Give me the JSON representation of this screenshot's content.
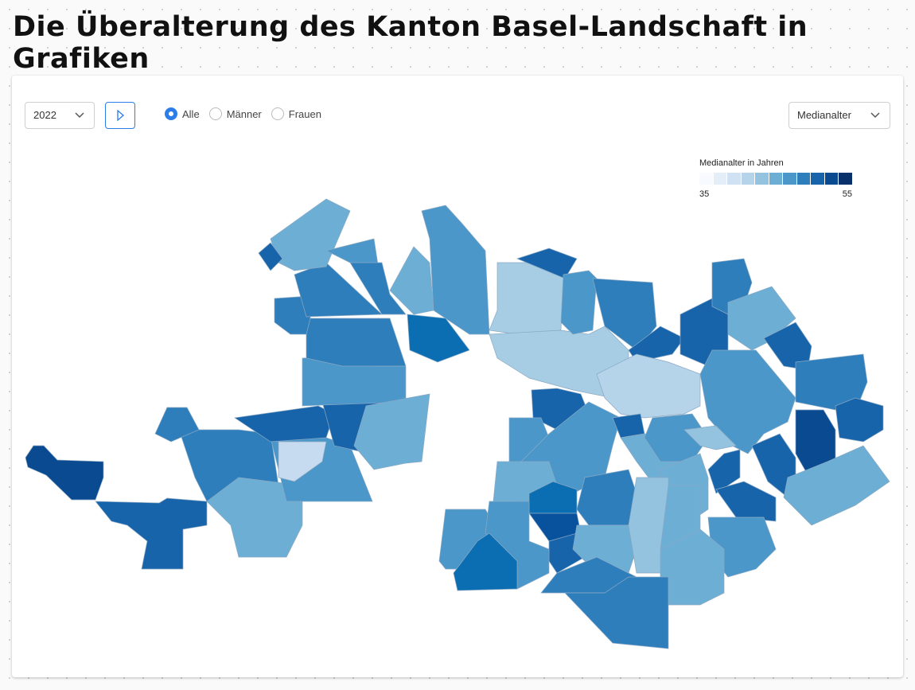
{
  "title": "Die Überalterung des Kanton Basel-Landschaft in Grafiken",
  "controls": {
    "year": "2022",
    "genders": [
      "Alle",
      "Männer",
      "Frauen"
    ],
    "selected_gender": 0,
    "metric": "Medianalter"
  },
  "legend": {
    "title": "Medianalter in Jahren",
    "colors": [
      "#f7fbff",
      "#e3eef9",
      "#cfe1f2",
      "#b5d4e9",
      "#93c3df",
      "#6daed5",
      "#4b97c9",
      "#2f7ebc",
      "#1864aa",
      "#0a4a90",
      "#08306b"
    ],
    "min": 35,
    "max": 55
  }
}
